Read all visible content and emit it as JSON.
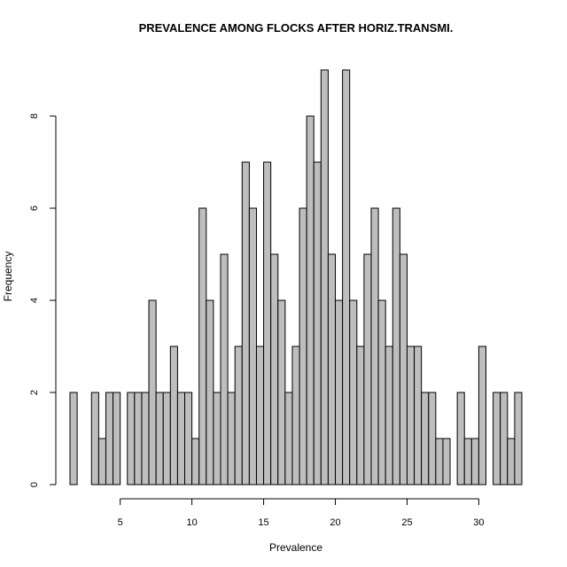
{
  "chart_data": {
    "type": "bar",
    "title": "PREVALENCE AMONG FLOCKS AFTER HORIZ.TRANSMI.",
    "xlabel": "Prevalence",
    "ylabel": "Frequency",
    "bin_width": 0.5,
    "x_start": 1.5,
    "values": [
      2,
      0,
      0,
      2,
      1,
      2,
      2,
      0,
      2,
      2,
      2,
      4,
      2,
      2,
      3,
      2,
      2,
      1,
      6,
      4,
      2,
      5,
      2,
      3,
      7,
      6,
      3,
      7,
      5,
      4,
      2,
      3,
      6,
      8,
      7,
      9,
      5,
      4,
      9,
      4,
      3,
      5,
      6,
      4,
      3,
      6,
      5,
      3,
      3,
      2,
      2,
      1,
      1,
      0,
      2,
      1,
      1,
      3,
      0,
      2,
      2,
      1,
      2
    ],
    "xlim": [
      1.5,
      33
    ],
    "ylim": [
      0,
      9
    ],
    "x_ticks": [
      5,
      10,
      15,
      20,
      25,
      30
    ],
    "y_ticks": [
      0,
      2,
      4,
      6,
      8
    ],
    "grid": false,
    "legend": "none",
    "bar_color": "#bebebe"
  }
}
